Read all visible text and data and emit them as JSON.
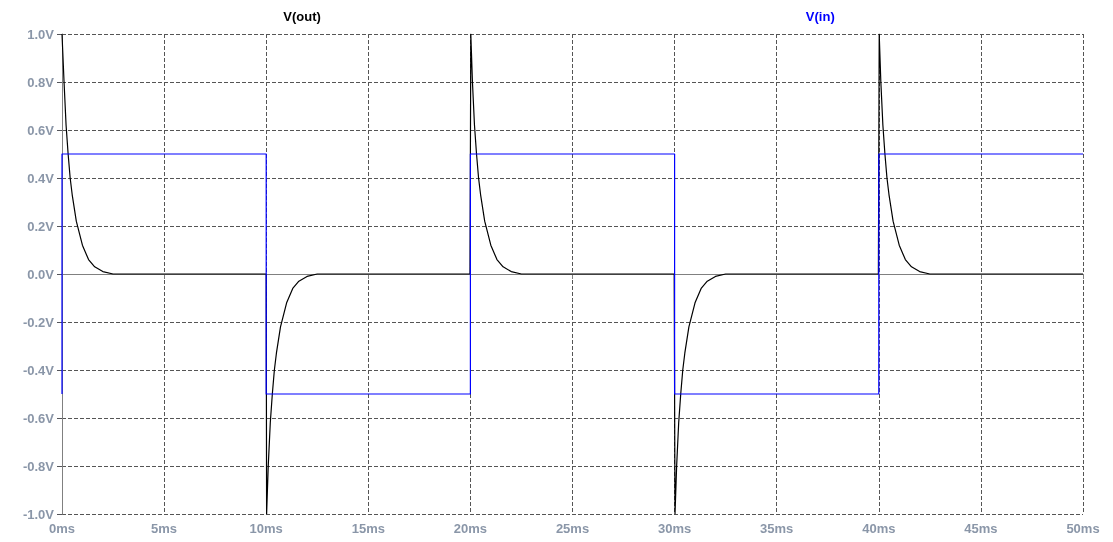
{
  "chart_data": {
    "type": "line",
    "line_style": "solid",
    "marker": "none",
    "grid": true,
    "legend": "top",
    "xlim": [
      0,
      50
    ],
    "ylim": [
      -1.0,
      1.0
    ],
    "xticks": [
      {
        "value": 0,
        "label": "0ms"
      },
      {
        "value": 5,
        "label": "5ms"
      },
      {
        "value": 10,
        "label": "10ms"
      },
      {
        "value": 15,
        "label": "15ms"
      },
      {
        "value": 20,
        "label": "20ms"
      },
      {
        "value": 25,
        "label": "25ms"
      },
      {
        "value": 30,
        "label": "30ms"
      },
      {
        "value": 35,
        "label": "35ms"
      },
      {
        "value": 40,
        "label": "40ms"
      },
      {
        "value": 45,
        "label": "45ms"
      },
      {
        "value": 50,
        "label": "50ms"
      }
    ],
    "yticks": [
      {
        "value": -1.0,
        "label": "-1.0V"
      },
      {
        "value": -0.8,
        "label": "-0.8V"
      },
      {
        "value": -0.6,
        "label": "-0.6V"
      },
      {
        "value": -0.4,
        "label": "-0.4V"
      },
      {
        "value": -0.2,
        "label": "-0.2V"
      },
      {
        "value": 0,
        "label": "0.0V"
      },
      {
        "value": 0.2,
        "label": "0.2V"
      },
      {
        "value": 0.4,
        "label": "0.4V"
      },
      {
        "value": 0.6,
        "label": "0.6V"
      },
      {
        "value": 0.8,
        "label": "0.8V"
      },
      {
        "value": 1.0,
        "label": "1.0V"
      }
    ],
    "series": [
      {
        "name": "V(out)",
        "color": "#000000",
        "x": [
          0,
          0.1,
          0.2,
          0.3,
          0.4,
          0.5,
          0.7,
          1.0,
          1.3,
          1.6,
          2.0,
          2.5,
          10,
          10.02,
          10.1,
          10.2,
          10.3,
          10.4,
          10.5,
          10.7,
          11.0,
          11.3,
          11.6,
          12.0,
          12.5,
          19.98,
          20.02,
          20.1,
          20.2,
          20.3,
          20.4,
          20.5,
          20.7,
          21.0,
          21.3,
          21.6,
          22.0,
          22.5,
          29.98,
          30.02,
          30.1,
          30.2,
          30.3,
          30.4,
          30.5,
          30.7,
          31.0,
          31.3,
          31.6,
          32.0,
          32.5,
          39.98,
          40.02,
          40.1,
          40.2,
          40.3,
          40.4,
          40.5,
          40.7,
          41.0,
          41.3,
          41.6,
          42.0,
          42.5,
          50
        ],
        "values": [
          1.0,
          0.8,
          0.62,
          0.5,
          0.4,
          0.33,
          0.22,
          0.12,
          0.06,
          0.03,
          0.01,
          0,
          0,
          -1.0,
          -0.8,
          -0.62,
          -0.5,
          -0.4,
          -0.33,
          -0.22,
          -0.12,
          -0.06,
          -0.03,
          -0.01,
          0,
          0,
          1.0,
          0.8,
          0.62,
          0.5,
          0.4,
          0.33,
          0.22,
          0.12,
          0.06,
          0.03,
          0.01,
          0,
          0,
          -1.0,
          -0.8,
          -0.62,
          -0.5,
          -0.4,
          -0.33,
          -0.22,
          -0.12,
          -0.06,
          -0.03,
          -0.01,
          0,
          0,
          1.0,
          0.8,
          0.62,
          0.5,
          0.4,
          0.33,
          0.22,
          0.12,
          0.06,
          0.03,
          0.01,
          0,
          0
        ]
      },
      {
        "name": "V(in)",
        "color": "#0000ff",
        "x": [
          0,
          0,
          10,
          10,
          20,
          20,
          30,
          30,
          40,
          40,
          50
        ],
        "values": [
          -0.5,
          0.5,
          0.5,
          -0.5,
          -0.5,
          0.5,
          0.5,
          -0.5,
          -0.5,
          0.5,
          0.5
        ]
      }
    ]
  }
}
